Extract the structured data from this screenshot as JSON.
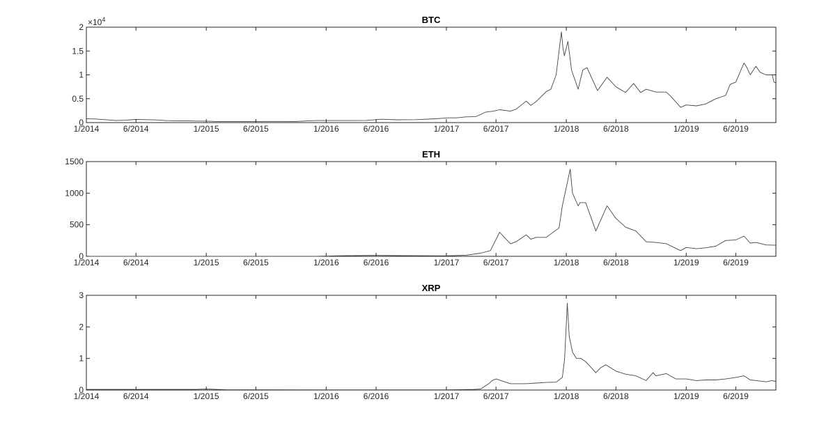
{
  "chart_data": [
    {
      "type": "line",
      "title": "BTC",
      "xlabel": "",
      "ylabel": "",
      "xlim": [
        "2014-01-01",
        "2019-10-01"
      ],
      "ylim": [
        0,
        20000
      ],
      "y_exponent_label": "×10",
      "y_exponent_power": "4",
      "yticks": [
        0,
        5000,
        10000,
        15000,
        20000
      ],
      "ytick_labels": [
        "0",
        "0.5",
        "1",
        "1.5",
        "2"
      ],
      "xticks": [
        "2014-01-01",
        "2014-06-01",
        "2015-01-01",
        "2015-06-01",
        "2016-01-01",
        "2016-06-01",
        "2017-01-01",
        "2017-06-01",
        "2018-01-01",
        "2018-06-01",
        "2019-01-01",
        "2019-06-01"
      ],
      "xtick_labels": [
        "1/2014",
        "6/2014",
        "1/2015",
        "6/2015",
        "1/2016",
        "6/2016",
        "1/2017",
        "6/2017",
        "1/2018",
        "6/2018",
        "1/2019",
        "6/2019"
      ],
      "grid": false,
      "line_color": "#444444",
      "series": [
        {
          "x": [
            "2014-01-01",
            "2014-02-01",
            "2014-03-01",
            "2014-04-01",
            "2014-05-01",
            "2014-06-01",
            "2014-07-01",
            "2014-08-01",
            "2014-09-01",
            "2014-10-01",
            "2014-11-01",
            "2014-12-01",
            "2015-01-01",
            "2015-02-01",
            "2015-04-01",
            "2015-06-01",
            "2015-08-01",
            "2015-10-01",
            "2015-11-05",
            "2015-12-01",
            "2016-01-01",
            "2016-03-01",
            "2016-05-01",
            "2016-06-18",
            "2016-08-01",
            "2016-10-01",
            "2016-12-01",
            "2017-01-05",
            "2017-02-01",
            "2017-03-01",
            "2017-04-01",
            "2017-05-01",
            "2017-05-25",
            "2017-06-12",
            "2017-07-15",
            "2017-08-01",
            "2017-09-01",
            "2017-09-15",
            "2017-10-01",
            "2017-11-01",
            "2017-11-15",
            "2017-12-01",
            "2017-12-17",
            "2017-12-22",
            "2017-12-26",
            "2018-01-06",
            "2018-01-17",
            "2018-02-06",
            "2018-02-20",
            "2018-03-05",
            "2018-04-06",
            "2018-05-05",
            "2018-06-01",
            "2018-06-30",
            "2018-07-25",
            "2018-08-15",
            "2018-09-01",
            "2018-10-01",
            "2018-11-01",
            "2018-11-15",
            "2018-12-15",
            "2019-01-01",
            "2019-02-01",
            "2019-03-01",
            "2019-04-01",
            "2019-05-01",
            "2019-05-15",
            "2019-06-01",
            "2019-06-26",
            "2019-07-05",
            "2019-07-15",
            "2019-08-01",
            "2019-08-15",
            "2019-09-01",
            "2019-09-20",
            "2019-09-25",
            "2019-10-01"
          ],
          "values": [
            800,
            750,
            600,
            450,
            500,
            650,
            620,
            550,
            420,
            380,
            380,
            320,
            300,
            240,
            240,
            230,
            250,
            240,
            350,
            420,
            430,
            420,
            450,
            700,
            580,
            620,
            800,
            1000,
            1000,
            1200,
            1250,
            2200,
            2400,
            2700,
            2400,
            2800,
            4500,
            3600,
            4400,
            6500,
            7000,
            10000,
            19000,
            15500,
            14000,
            17000,
            11000,
            7000,
            11000,
            11500,
            6700,
            9500,
            7500,
            6300,
            8200,
            6300,
            7000,
            6400,
            6400,
            5500,
            3200,
            3700,
            3500,
            3900,
            5000,
            5700,
            8000,
            8500,
            12500,
            11500,
            10000,
            11800,
            10500,
            10000,
            10000,
            8500,
            8300
          ]
        }
      ]
    },
    {
      "type": "line",
      "title": "ETH",
      "xlabel": "",
      "ylabel": "",
      "xlim": [
        "2014-01-01",
        "2019-10-01"
      ],
      "ylim": [
        0,
        1500
      ],
      "yticks": [
        0,
        500,
        1000,
        1500
      ],
      "ytick_labels": [
        "0",
        "500",
        "1000",
        "1500"
      ],
      "xticks": [
        "2014-01-01",
        "2014-06-01",
        "2015-01-01",
        "2015-06-01",
        "2016-01-01",
        "2016-06-01",
        "2017-01-01",
        "2017-06-01",
        "2018-01-01",
        "2018-06-01",
        "2019-01-01",
        "2019-06-01"
      ],
      "xtick_labels": [
        "1/2014",
        "6/2014",
        "1/2015",
        "6/2015",
        "1/2016",
        "6/2016",
        "1/2017",
        "6/2017",
        "1/2018",
        "6/2018",
        "1/2019",
        "6/2019"
      ],
      "grid": false,
      "line_color": "#444444",
      "series": [
        {
          "x": [
            "2014-01-01",
            "2015-06-01",
            "2015-08-08",
            "2015-12-01",
            "2016-03-01",
            "2016-06-01",
            "2016-08-01",
            "2017-01-01",
            "2017-03-01",
            "2017-04-15",
            "2017-05-15",
            "2017-06-12",
            "2017-07-15",
            "2017-08-01",
            "2017-09-01",
            "2017-09-15",
            "2017-10-01",
            "2017-11-01",
            "2017-12-10",
            "2017-12-20",
            "2018-01-13",
            "2018-01-20",
            "2018-02-06",
            "2018-02-12",
            "2018-03-01",
            "2018-04-01",
            "2018-05-05",
            "2018-06-01",
            "2018-07-01",
            "2018-08-01",
            "2018-09-01",
            "2018-10-01",
            "2018-11-01",
            "2018-12-15",
            "2019-01-01",
            "2019-02-01",
            "2019-03-01",
            "2019-04-01",
            "2019-05-01",
            "2019-06-01",
            "2019-06-26",
            "2019-07-15",
            "2019-08-01",
            "2019-09-01",
            "2019-10-01"
          ],
          "values": [
            0,
            0,
            1,
            1,
            10,
            14,
            11,
            8,
            18,
            50,
            90,
            380,
            200,
            230,
            340,
            270,
            300,
            300,
            450,
            800,
            1380,
            1000,
            800,
            850,
            850,
            400,
            800,
            600,
            460,
            400,
            230,
            220,
            200,
            90,
            140,
            120,
            135,
            160,
            250,
            260,
            320,
            210,
            220,
            180,
            175
          ]
        }
      ]
    },
    {
      "type": "line",
      "title": "XRP",
      "xlabel": "",
      "ylabel": "",
      "xlim": [
        "2014-01-01",
        "2019-10-01"
      ],
      "ylim": [
        0,
        3
      ],
      "yticks": [
        0,
        1,
        2,
        3
      ],
      "ytick_labels": [
        "0",
        "1",
        "2",
        "3"
      ],
      "xticks": [
        "2014-01-01",
        "2014-06-01",
        "2015-01-01",
        "2015-06-01",
        "2016-01-01",
        "2016-06-01",
        "2017-01-01",
        "2017-06-01",
        "2018-01-01",
        "2018-06-01",
        "2019-01-01",
        "2019-06-01"
      ],
      "xtick_labels": [
        "1/2014",
        "6/2014",
        "1/2015",
        "6/2015",
        "1/2016",
        "6/2016",
        "1/2017",
        "6/2017",
        "1/2018",
        "6/2018",
        "1/2019",
        "6/2019"
      ],
      "grid": false,
      "line_color": "#444444",
      "series": [
        {
          "x": [
            "2014-01-01",
            "2014-12-01",
            "2015-01-01",
            "2015-03-01",
            "2016-01-01",
            "2017-01-01",
            "2017-03-25",
            "2017-04-15",
            "2017-05-10",
            "2017-05-20",
            "2017-06-01",
            "2017-07-15",
            "2017-09-01",
            "2017-10-01",
            "2017-11-01",
            "2017-12-01",
            "2017-12-20",
            "2017-12-27",
            "2018-01-04",
            "2018-01-10",
            "2018-01-20",
            "2018-02-01",
            "2018-02-15",
            "2018-03-01",
            "2018-04-01",
            "2018-04-15",
            "2018-05-01",
            "2018-06-01",
            "2018-07-01",
            "2018-08-01",
            "2018-09-01",
            "2018-09-22",
            "2018-10-01",
            "2018-11-01",
            "2018-12-01",
            "2019-01-01",
            "2019-02-01",
            "2019-03-01",
            "2019-04-01",
            "2019-05-01",
            "2019-06-01",
            "2019-06-26",
            "2019-07-15",
            "2019-08-01",
            "2019-09-01",
            "2019-09-20",
            "2019-10-01"
          ],
          "values": [
            0.02,
            0.02,
            0.03,
            0.01,
            0.006,
            0.006,
            0.02,
            0.03,
            0.2,
            0.3,
            0.35,
            0.2,
            0.2,
            0.22,
            0.24,
            0.25,
            0.4,
            1.0,
            2.75,
            1.7,
            1.2,
            1.0,
            1.0,
            0.9,
            0.55,
            0.7,
            0.8,
            0.6,
            0.5,
            0.45,
            0.3,
            0.55,
            0.45,
            0.52,
            0.35,
            0.35,
            0.3,
            0.32,
            0.32,
            0.35,
            0.4,
            0.45,
            0.32,
            0.3,
            0.26,
            0.3,
            0.27
          ]
        }
      ]
    }
  ]
}
